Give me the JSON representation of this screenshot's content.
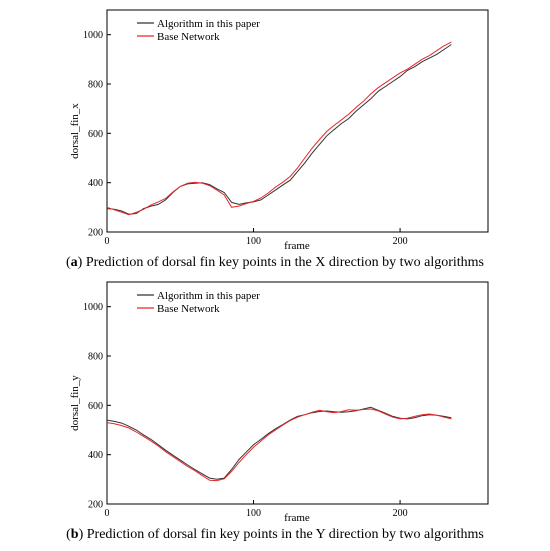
{
  "chart_data": [
    {
      "type": "line",
      "xlabel": "frame",
      "ylabel": "dorsal_fin_x",
      "xlim": [
        0,
        260
      ],
      "ylim": [
        200,
        1100
      ],
      "xticks": [
        0,
        100,
        200
      ],
      "yticks": [
        200,
        400,
        600,
        800,
        1000
      ],
      "grid": false,
      "legend_placement": "top-left",
      "caption_letter": "a",
      "caption_text": "Prediction of dorsal fin key points in the X direction by two algorithms",
      "series": [
        {
          "name": "Algorithm in this paper",
          "color": "#333333",
          "x": [
            0,
            5,
            10,
            15,
            20,
            25,
            30,
            35,
            40,
            45,
            50,
            55,
            60,
            65,
            70,
            75,
            80,
            85,
            90,
            95,
            100,
            105,
            110,
            115,
            120,
            125,
            130,
            135,
            140,
            145,
            150,
            155,
            160,
            165,
            170,
            175,
            180,
            185,
            190,
            195,
            200,
            205,
            210,
            215,
            220,
            225,
            230,
            235
          ],
          "y": [
            295,
            292,
            285,
            272,
            275,
            295,
            305,
            312,
            330,
            360,
            385,
            395,
            398,
            400,
            392,
            375,
            360,
            320,
            312,
            318,
            322,
            330,
            350,
            370,
            390,
            410,
            445,
            480,
            520,
            555,
            590,
            615,
            640,
            660,
            690,
            715,
            740,
            770,
            790,
            810,
            830,
            855,
            870,
            890,
            905,
            920,
            940,
            960
          ]
        },
        {
          "name": "Base Network",
          "color": "#e8262a",
          "x": [
            0,
            5,
            10,
            15,
            20,
            25,
            30,
            35,
            40,
            45,
            50,
            55,
            60,
            65,
            70,
            75,
            80,
            85,
            90,
            95,
            100,
            105,
            110,
            115,
            120,
            125,
            130,
            135,
            140,
            145,
            150,
            155,
            160,
            165,
            170,
            175,
            180,
            185,
            190,
            195,
            200,
            205,
            210,
            215,
            220,
            225,
            230,
            235
          ],
          "y": [
            300,
            290,
            280,
            270,
            280,
            292,
            310,
            322,
            336,
            362,
            385,
            398,
            402,
            398,
            388,
            370,
            350,
            300,
            305,
            315,
            324,
            338,
            358,
            382,
            402,
            425,
            460,
            500,
            540,
            575,
            608,
            632,
            655,
            678,
            705,
            730,
            760,
            785,
            805,
            825,
            845,
            860,
            880,
            900,
            915,
            935,
            955,
            970
          ]
        }
      ]
    },
    {
      "type": "line",
      "xlabel": "frame",
      "ylabel": "dorsal_fin_y",
      "xlim": [
        0,
        260
      ],
      "ylim": [
        200,
        1100
      ],
      "xticks": [
        0,
        100,
        200
      ],
      "yticks": [
        200,
        400,
        600,
        800,
        1000
      ],
      "grid": false,
      "legend_placement": "top-left",
      "caption_letter": "b",
      "caption_text": "Prediction of dorsal fin key points in the Y direction by two algorithms",
      "series": [
        {
          "name": "Algorithm in this paper",
          "color": "#333333",
          "x": [
            0,
            5,
            10,
            15,
            20,
            25,
            30,
            35,
            40,
            45,
            50,
            55,
            60,
            65,
            70,
            75,
            80,
            85,
            90,
            95,
            100,
            105,
            110,
            115,
            120,
            125,
            130,
            135,
            140,
            145,
            150,
            155,
            160,
            165,
            170,
            175,
            180,
            185,
            190,
            195,
            200,
            205,
            210,
            215,
            220,
            225,
            230,
            235
          ],
          "y": [
            540,
            535,
            528,
            515,
            500,
            480,
            462,
            440,
            418,
            398,
            378,
            358,
            340,
            322,
            305,
            300,
            305,
            340,
            380,
            410,
            440,
            462,
            485,
            505,
            522,
            540,
            555,
            562,
            570,
            575,
            577,
            574,
            572,
            574,
            578,
            585,
            592,
            580,
            568,
            555,
            548,
            545,
            550,
            558,
            562,
            560,
            555,
            550
          ]
        },
        {
          "name": "Base Network",
          "color": "#e8262a",
          "x": [
            0,
            5,
            10,
            15,
            20,
            25,
            30,
            35,
            40,
            45,
            50,
            55,
            60,
            65,
            70,
            75,
            80,
            85,
            90,
            95,
            100,
            105,
            110,
            115,
            120,
            125,
            130,
            135,
            140,
            145,
            150,
            155,
            160,
            165,
            170,
            175,
            180,
            185,
            190,
            195,
            200,
            205,
            210,
            215,
            220,
            225,
            230,
            235
          ],
          "y": [
            530,
            525,
            518,
            508,
            492,
            474,
            455,
            435,
            412,
            392,
            372,
            352,
            335,
            315,
            296,
            295,
            302,
            332,
            368,
            400,
            430,
            455,
            480,
            500,
            520,
            538,
            552,
            562,
            572,
            580,
            574,
            570,
            575,
            582,
            580,
            583,
            585,
            578,
            565,
            552,
            545,
            548,
            555,
            562,
            565,
            560,
            552,
            545
          ]
        }
      ]
    }
  ]
}
